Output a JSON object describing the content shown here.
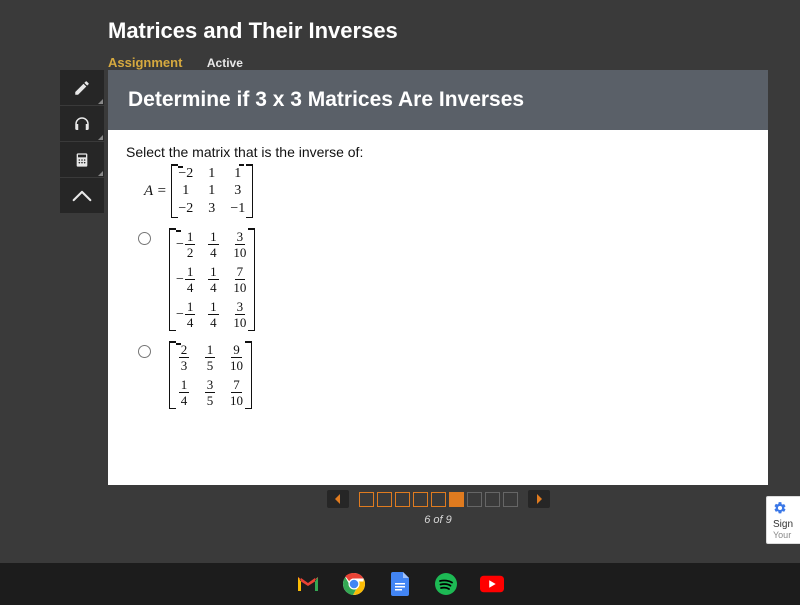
{
  "header": {
    "title": "Matrices and Their Inverses",
    "assignment_label": "Assignment",
    "active_label": "Active"
  },
  "toolbar": {
    "items": [
      {
        "name": "pencil-icon"
      },
      {
        "name": "headphones-icon"
      },
      {
        "name": "calculator-icon"
      },
      {
        "name": "collapse-icon"
      }
    ]
  },
  "question": {
    "title": "Determine if 3 x 3 Matrices Are Inverses",
    "prompt": "Select the matrix that is the inverse of:",
    "matrix_label": "A =",
    "given_matrix": [
      [
        "−2",
        "1",
        "1"
      ],
      [
        "1",
        "1",
        "3"
      ],
      [
        "−2",
        "3",
        "−1"
      ]
    ],
    "options": [
      {
        "rows": [
          [
            {
              "neg": true,
              "num": "1",
              "den": "2"
            },
            {
              "num": "1",
              "den": "4"
            },
            {
              "num": "3",
              "den": "10"
            }
          ],
          [
            {
              "neg": true,
              "num": "1",
              "den": "4"
            },
            {
              "num": "1",
              "den": "4"
            },
            {
              "num": "7",
              "den": "10"
            }
          ],
          [
            {
              "neg": true,
              "num": "1",
              "den": "4"
            },
            {
              "num": "1",
              "den": "4"
            },
            {
              "num": "3",
              "den": "10"
            }
          ]
        ]
      },
      {
        "rows": [
          [
            {
              "num": "2",
              "den": "3"
            },
            {
              "num": "1",
              "den": "5"
            },
            {
              "num": "9",
              "den": "10"
            }
          ],
          [
            {
              "num": "1",
              "den": "4"
            },
            {
              "num": "3",
              "den": "5"
            },
            {
              "num": "7",
              "den": "10"
            }
          ]
        ]
      }
    ]
  },
  "pager": {
    "total": 9,
    "current": 6,
    "caption": "6 of 9"
  },
  "signin": {
    "line1": "Sign",
    "line2": "Your"
  },
  "taskbar": {
    "apps": [
      "gmail",
      "chrome",
      "docs",
      "spotify",
      "youtube"
    ]
  },
  "colors": {
    "bg": "#3a3a3a",
    "panel_header": "#5a6068",
    "accent": "#e07b1f",
    "assignment": "#d6a93f"
  }
}
